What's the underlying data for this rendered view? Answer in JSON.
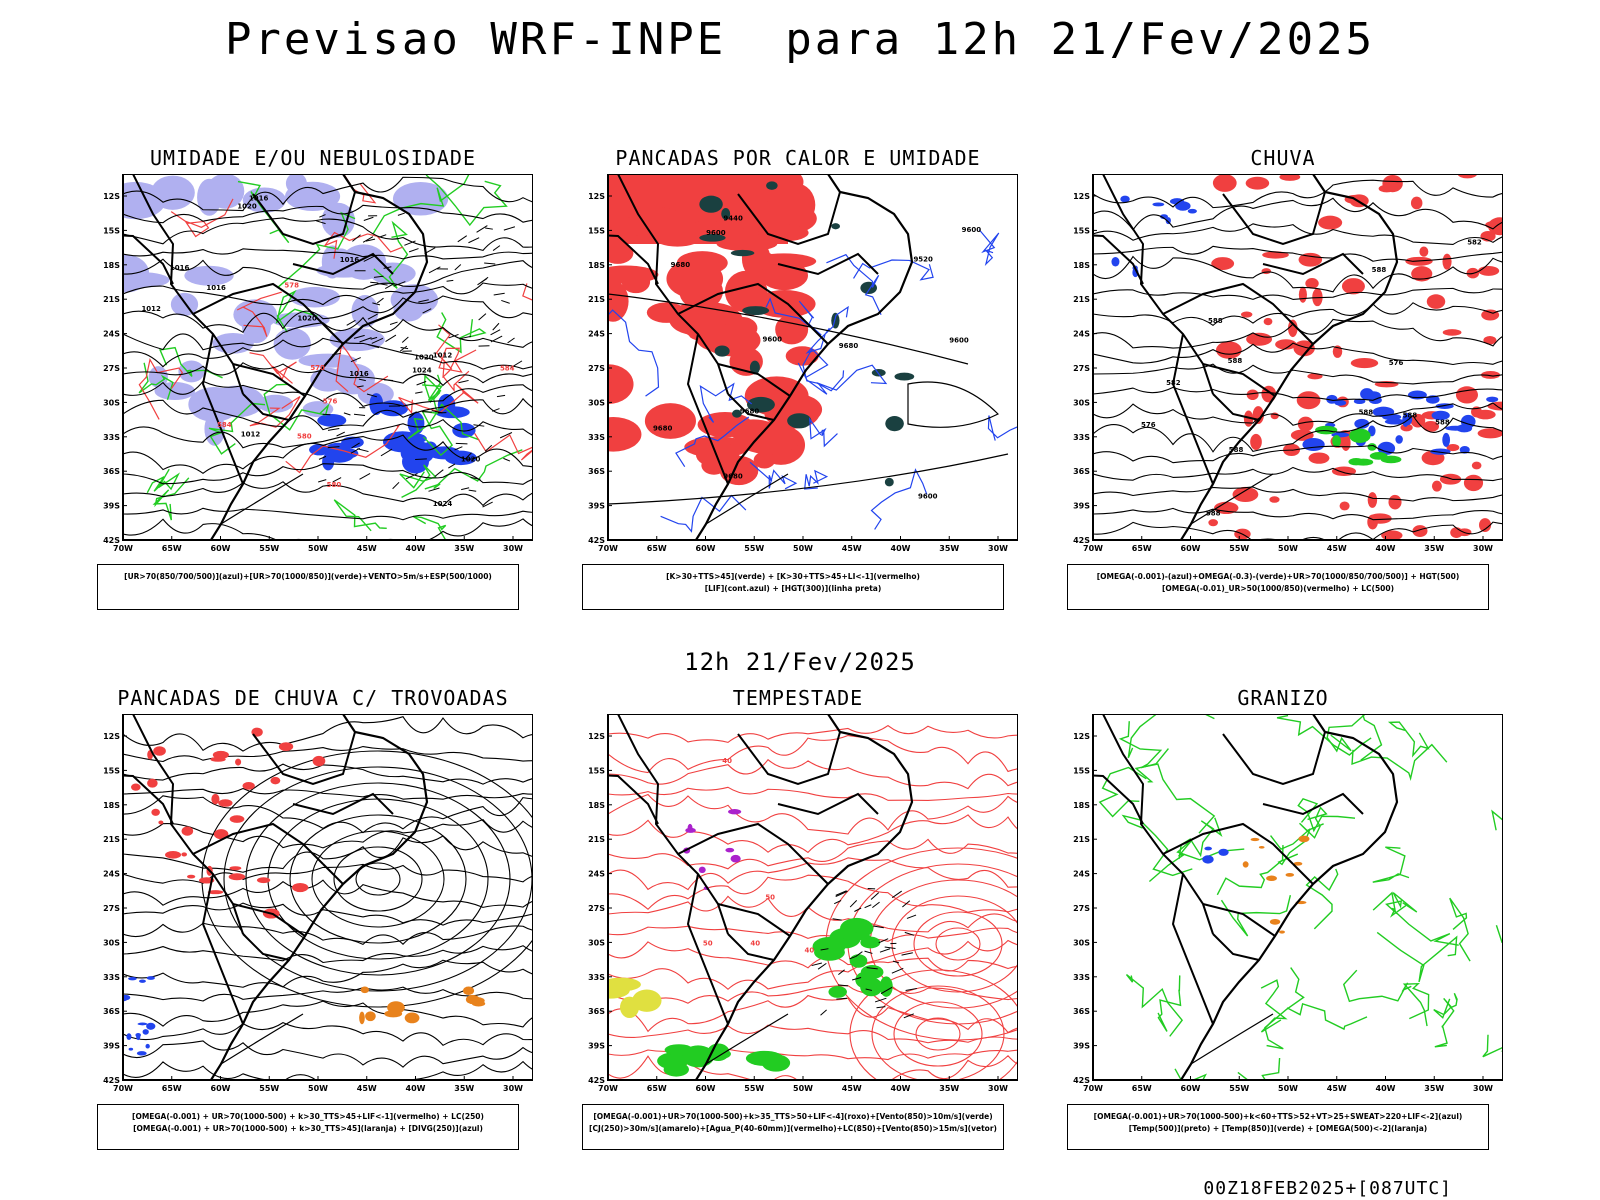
{
  "header": {
    "title": "Previsao WRF-INPE  para 12h 21/Fev/2025"
  },
  "subtitle": "12h 21/Fev/2025",
  "axes": {
    "lat_labels": [
      "12S",
      "15S",
      "18S",
      "21S",
      "24S",
      "27S",
      "30S",
      "33S",
      "36S",
      "39S",
      "42S"
    ],
    "lon_labels": [
      "70W",
      "65W",
      "60W",
      "55W",
      "50W",
      "45W",
      "40W",
      "35W",
      "30W"
    ]
  },
  "panels": [
    {
      "title": "UMIDADE E/OU NEBULOSIDADE",
      "legend": [
        "[UR>70(850/700/500)](azul)+[UR>70(1000/850)](verde)+VENTO>5m/s+ESP(500/1000)"
      ],
      "contour_labels": [
        "1016",
        "1016",
        "1020",
        "1020",
        "1012",
        "1016",
        "1012",
        "1016",
        "1020",
        "1024",
        "1016",
        "1020",
        "1024",
        "1012",
        "576",
        "580",
        "578",
        "570",
        "584",
        "580",
        "584"
      ]
    },
    {
      "title": "PANCADAS POR CALOR E UMIDADE",
      "legend": [
        "[K>30+TTS>45](verde) + [K>30+TTS>45+LI<-1](vermelho)",
        "[LIF](cont.azul) + [HGT(300)](linha preta)"
      ],
      "contour_labels": [
        "9600",
        "9600",
        "9600",
        "9600",
        "9680",
        "9680",
        "9680",
        "9680",
        "9680",
        "9600",
        "9520",
        "9440"
      ]
    },
    {
      "title": "CHUVA",
      "legend": [
        "[OMEGA(-0.001)-(azul)+OMEGA(-0.3)-(verde)+UR>70(1000/850/700/500)] + HGT(500)",
        "[OMEGA(-0.01)_UR>50(1000/850)(vermelho) + LC(500)"
      ],
      "contour_labels": [
        "588",
        "588",
        "588",
        "588",
        "588",
        "588",
        "582",
        "582",
        "576",
        "576",
        "588",
        "588"
      ]
    },
    {
      "title": "PANCADAS DE CHUVA C/ TROVOADAS",
      "legend": [
        "[OMEGA(-0.001) + UR>70(1000-500) + k>30_TTS>45+LIF<-1](vermelho) + LC(250)",
        "[OMEGA(-0.001) + UR>70(1000-500) + k>30_TTS>45](laranja) + [DIVG(250)](azul)"
      ],
      "contour_labels": []
    },
    {
      "title": "TEMPESTADE",
      "legend": [
        "[OMEGA(-0.001)+UR>70(1000-500)+k>35_TTS>50+LIF<-4](roxo)+[Vento(850)>10m/s](verde)",
        "[CJ(250)>30m/s](amarelo)+[Agua_P(40-60mm)](vermelho)+LC(850)+[Vento(850)>15m/s](vetor)"
      ],
      "contour_labels": [
        "40",
        "40",
        "50",
        "50",
        "40"
      ]
    },
    {
      "title": "GRANIZO",
      "legend": [
        "[OMEGA(-0.001)+UR>70(1000-500)+k<60+TTS>52+VT>25+SWEAT>220+LIF<-2](azul)",
        "[Temp(500)](preto) + [Temp(850)](verde) + [OMEGA(500)<-2](laranja)"
      ],
      "contour_labels": []
    }
  ],
  "footer": "00Z18FEB2025+[087UTC]",
  "colors": {
    "red": "#f04040",
    "green": "#22cc22",
    "blue": "#2244ee",
    "lightblue": "#b0b0f0",
    "darkteal": "#1a4040",
    "orange": "#e8821c",
    "yellow": "#e0e040",
    "purple": "#aa22cc"
  }
}
